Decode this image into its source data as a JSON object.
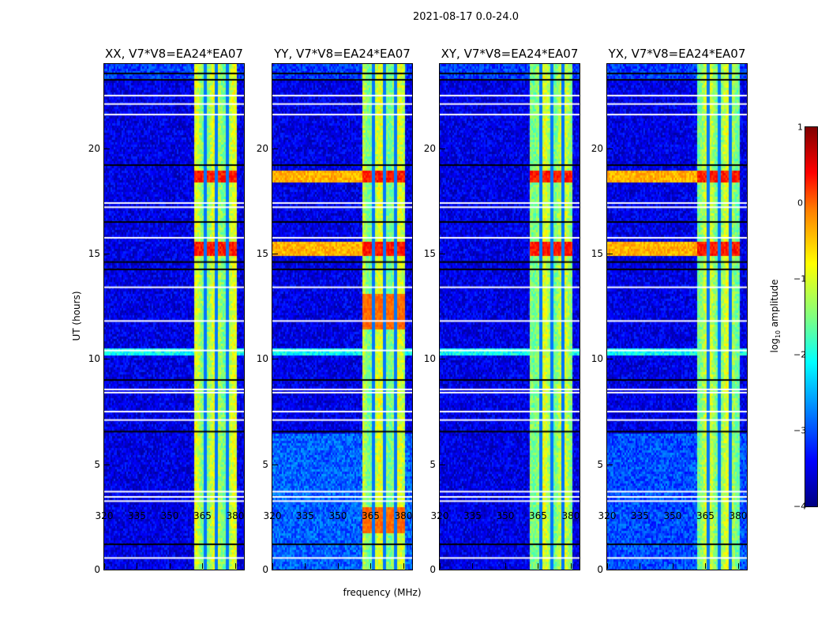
{
  "suptitle": "2021-08-17 0.0-24.0",
  "chart_data": {
    "type": "heatmap",
    "title": "2021-08-17 0.0-24.0",
    "xlabel": "frequency (MHz)",
    "ylabel": "UT (hours)",
    "xlim": [
      320,
      384
    ],
    "ylim": [
      0,
      24
    ],
    "xticks": [
      320,
      335,
      350,
      365,
      380
    ],
    "yticks": [
      0,
      5,
      10,
      15,
      20
    ],
    "panels": [
      {
        "title": "XX, V7*V8=EA24*EA07",
        "low_bg_boost": 0
      },
      {
        "title": "YY, V7*V8=EA24*EA07",
        "low_bg_boost": 0.6
      },
      {
        "title": "XY, V7*V8=EA24*EA07",
        "low_bg_boost": 0
      },
      {
        "title": "YX, V7*V8=EA24*EA07",
        "low_bg_boost": 0.5
      }
    ],
    "band_mhz": [
      360.5,
      380.5
    ],
    "band_gaps_mhz": [
      366,
      371,
      376
    ],
    "background_level": -3.5,
    "band_level": -1.3,
    "hot_periods_ut": [
      [
        14.9,
        15.6
      ],
      [
        18.4,
        19.0
      ]
    ],
    "flagged_ut_white": [
      22.5,
      22.1,
      21.6,
      17.4,
      17.2,
      15.75,
      13.4,
      11.8,
      10.4,
      8.55,
      8.4,
      7.5,
      7.1,
      3.7,
      3.45,
      3.25,
      0.55
    ],
    "flagged_ut_black": [
      23.55,
      23.25,
      19.2,
      16.5,
      14.6,
      14.25,
      9.0,
      6.55,
      1.2
    ],
    "colorbar": {
      "label": "log10 amplitude",
      "ticks": [
        1,
        0,
        -1,
        -2,
        -3,
        -4
      ],
      "range": [
        -4,
        1
      ],
      "colormap": "jet"
    }
  }
}
